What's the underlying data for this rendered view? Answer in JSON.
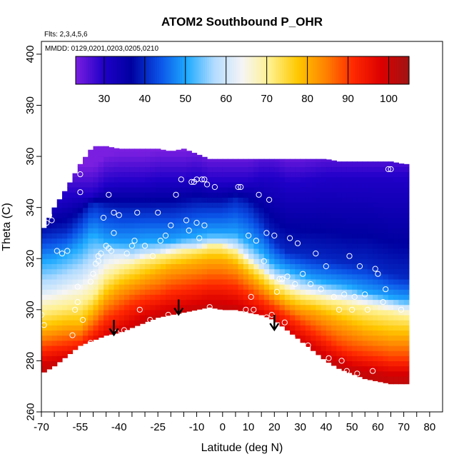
{
  "chart_data": {
    "type": "heatmap",
    "title": "ATOM2 Southbound P_OHR",
    "subtitle_flights": "Flts: 2,3,4,5,6",
    "subtitle_dates": "MMDD: 0129,0201,0203,0205,0210",
    "xlabel": "Latitude (deg N)",
    "ylabel": "Theta (C)",
    "xlim": [
      -70,
      85
    ],
    "ylim": [
      260,
      405
    ],
    "x_ticks": [
      -70,
      -55,
      -40,
      -25,
      -10,
      0,
      10,
      20,
      30,
      40,
      50,
      60,
      70,
      80
    ],
    "x_minor_ticks": [
      -65,
      -60,
      -50,
      -45,
      -35,
      -30,
      -20,
      -15,
      -5,
      5,
      15,
      25,
      35,
      45,
      55,
      65,
      75
    ],
    "y_ticks": [
      260,
      280,
      300,
      320,
      340,
      360,
      380,
      400
    ],
    "colorbar": {
      "range": [
        23,
        105
      ],
      "ticks": [
        30,
        40,
        50,
        60,
        70,
        80,
        90,
        100
      ],
      "colors": [
        "#7A1FE0",
        "#2000C8",
        "#0000A0",
        "#0A50E6",
        "#1EAAFF",
        "#B4DCFF",
        "#F5F5F5",
        "#FFF08C",
        "#FFC800",
        "#FF8200",
        "#FF2800",
        "#DC0000",
        "#A01414"
      ]
    },
    "field": {
      "lat": [
        -70,
        -65,
        -60,
        -55,
        -50,
        -45,
        -40,
        -35,
        -30,
        -25,
        -20,
        -15,
        -10,
        -5,
        0,
        5,
        10,
        15,
        20,
        25,
        30,
        35,
        40,
        45,
        50,
        55,
        60,
        65,
        70,
        72
      ],
      "bottom_theta": [
        275,
        278,
        282,
        286,
        288,
        290,
        291,
        293,
        295,
        297,
        298,
        299,
        300,
        301,
        300,
        300,
        299,
        298,
        296,
        292,
        288,
        284,
        280,
        277,
        275,
        273,
        272,
        271,
        271,
        271
      ],
      "top_theta": [
        330,
        340,
        348,
        357,
        364,
        364,
        363,
        363,
        363,
        363,
        362,
        363,
        361,
        359,
        359,
        359,
        359,
        359,
        359,
        359,
        359,
        359,
        359,
        358,
        358,
        358,
        358,
        358,
        357,
        357
      ],
      "isoline_theta": {
        "30": [
          341,
          343,
          345,
          345,
          345,
          349,
          350,
          350,
          350,
          351,
          351,
          351,
          352,
          350,
          350,
          350,
          350,
          352,
          352,
          350,
          350,
          351,
          352,
          352,
          352,
          352,
          352,
          352,
          352,
          352
        ],
        "40": [
          329,
          330,
          331,
          336,
          342,
          340,
          339,
          339,
          339,
          339,
          339,
          340,
          341,
          341,
          341,
          343,
          341,
          335,
          327,
          323,
          322,
          321,
          320,
          319,
          318,
          318,
          316,
          314,
          313,
          313
        ],
        "50": [
          319,
          320,
          322,
          325,
          330,
          327,
          326,
          326,
          327,
          327,
          327,
          328,
          329,
          330,
          330,
          330,
          327,
          323,
          318,
          316,
          314,
          312,
          311,
          310,
          309,
          307,
          306,
          305,
          304,
          304
        ],
        "60": [
          308,
          309,
          311,
          313,
          317,
          321,
          322,
          321,
          322,
          323,
          324,
          325,
          325,
          326,
          326,
          325,
          321,
          317,
          313,
          311,
          309,
          308,
          307,
          306,
          305,
          304,
          303,
          302,
          301,
          301
        ],
        "70": [
          300,
          301,
          302,
          303,
          306,
          313,
          316,
          318,
          320,
          321,
          322,
          323,
          324,
          325,
          325,
          323,
          319,
          315,
          311,
          308,
          306,
          305,
          304,
          303,
          302,
          301,
          300,
          299,
          298,
          298
        ],
        "80": [
          292,
          293,
          294,
          294,
          299,
          305,
          309,
          311,
          313,
          315,
          317,
          318,
          319,
          320,
          320,
          318,
          314,
          310,
          306,
          303,
          301,
          300,
          298,
          296,
          294,
          292,
          291,
          290,
          290,
          290
        ],
        "90": [
          285,
          286,
          287,
          288,
          292,
          297,
          300,
          303,
          305,
          306,
          308,
          309,
          310,
          311,
          311,
          310,
          307,
          304,
          301,
          298,
          295,
          292,
          289,
          286,
          284,
          283,
          282,
          281,
          281,
          281
        ],
        "100": [
          278,
          279,
          280,
          282,
          285,
          288,
          290,
          293,
          296,
          298,
          299,
          300,
          301,
          302,
          302,
          301,
          299,
          297,
          294,
          291,
          287,
          284,
          281,
          279,
          277,
          276,
          275,
          274,
          274,
          274
        ]
      }
    },
    "samples": [
      [
        -70,
        298
      ],
      [
        -69,
        294
      ],
      [
        -68,
        334
      ],
      [
        -67,
        337
      ],
      [
        -66,
        335
      ],
      [
        -64,
        323
      ],
      [
        -62,
        322
      ],
      [
        -60,
        323
      ],
      [
        -58,
        290
      ],
      [
        -57,
        300
      ],
      [
        -56,
        303
      ],
      [
        -56,
        309
      ],
      [
        -55,
        353
      ],
      [
        -55,
        346
      ],
      [
        -54,
        296
      ],
      [
        -53,
        282
      ],
      [
        -52,
        284
      ],
      [
        -51,
        287
      ],
      [
        -51,
        311
      ],
      [
        -50,
        314
      ],
      [
        -49,
        318
      ],
      [
        -48,
        319
      ],
      [
        -48,
        321
      ],
      [
        -47,
        322
      ],
      [
        -46,
        336
      ],
      [
        -45,
        325
      ],
      [
        -44,
        345
      ],
      [
        -44,
        324
      ],
      [
        -43,
        323
      ],
      [
        -42,
        330
      ],
      [
        -42,
        338
      ],
      [
        -41,
        291
      ],
      [
        -40,
        337
      ],
      [
        -38,
        292
      ],
      [
        -37,
        322
      ],
      [
        -35,
        325
      ],
      [
        -34,
        327
      ],
      [
        -33,
        338
      ],
      [
        -32,
        300
      ],
      [
        -30,
        325
      ],
      [
        -28,
        296
      ],
      [
        -27,
        321
      ],
      [
        -25,
        338
      ],
      [
        -24,
        327
      ],
      [
        -22,
        329
      ],
      [
        -21,
        298
      ],
      [
        -20,
        333
      ],
      [
        -18,
        345
      ],
      [
        -16,
        351
      ],
      [
        -14,
        335
      ],
      [
        -13,
        331
      ],
      [
        -12,
        350
      ],
      [
        -11,
        350
      ],
      [
        -10,
        351
      ],
      [
        -10,
        334
      ],
      [
        -9,
        328
      ],
      [
        -8,
        351
      ],
      [
        -7,
        333
      ],
      [
        -7,
        351
      ],
      [
        -6,
        349
      ],
      [
        -5,
        301
      ],
      [
        -3,
        348
      ],
      [
        6,
        348
      ],
      [
        7,
        348
      ],
      [
        8,
        294
      ],
      [
        9,
        300
      ],
      [
        10,
        329
      ],
      [
        11,
        305
      ],
      [
        12,
        300
      ],
      [
        13,
        327
      ],
      [
        14,
        345
      ],
      [
        16,
        319
      ],
      [
        17,
        330
      ],
      [
        17,
        297
      ],
      [
        18,
        343
      ],
      [
        19,
        298
      ],
      [
        20,
        329
      ],
      [
        21,
        307
      ],
      [
        22,
        312
      ],
      [
        23,
        312
      ],
      [
        24,
        295
      ],
      [
        25,
        313
      ],
      [
        26,
        328
      ],
      [
        27,
        289
      ],
      [
        28,
        310
      ],
      [
        29,
        326
      ],
      [
        31,
        314
      ],
      [
        33,
        286
      ],
      [
        34,
        310
      ],
      [
        36,
        322
      ],
      [
        38,
        308
      ],
      [
        40,
        317
      ],
      [
        41,
        281
      ],
      [
        43,
        305
      ],
      [
        45,
        300
      ],
      [
        46,
        280
      ],
      [
        47,
        306
      ],
      [
        48,
        276
      ],
      [
        49,
        321
      ],
      [
        50,
        300
      ],
      [
        51,
        305
      ],
      [
        52,
        275
      ],
      [
        53,
        317
      ],
      [
        55,
        306
      ],
      [
        56,
        300
      ],
      [
        58,
        276
      ],
      [
        59,
        316
      ],
      [
        60,
        314
      ],
      [
        62,
        303
      ],
      [
        63,
        308
      ],
      [
        64,
        355
      ],
      [
        65,
        355
      ],
      [
        69,
        300
      ]
    ],
    "arrows": [
      {
        "lat": -42,
        "theta": 296
      },
      {
        "lat": -17,
        "theta": 304
      },
      {
        "lat": 20,
        "theta": 298
      }
    ]
  }
}
